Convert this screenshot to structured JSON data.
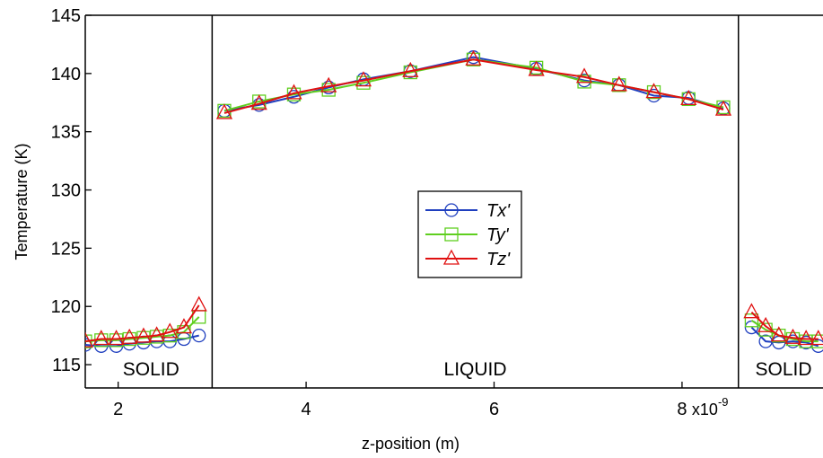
{
  "chart_data": {
    "type": "line",
    "title": "",
    "xlabel": "z-position (m)",
    "ylabel": "Temperature (K)",
    "xlim": [
      1.65e-09,
      9.5e-09
    ],
    "ylim": [
      113,
      145
    ],
    "x_scale_note": "x10^-9",
    "x_ticks": [
      2e-09,
      4e-09,
      6e-09,
      8e-09
    ],
    "x_tick_labels": [
      "2",
      "4",
      "6",
      "8"
    ],
    "y_ticks": [
      115,
      120,
      125,
      130,
      135,
      140,
      145
    ],
    "y_tick_labels": [
      "115",
      "120",
      "125",
      "130",
      "135",
      "140",
      "145"
    ],
    "boundaries": [
      3e-09,
      8.6e-09
    ],
    "regions": [
      {
        "label": "SOLID",
        "x": 2.35e-09
      },
      {
        "label": "LIQUID",
        "x": 5.8e-09
      },
      {
        "label": "SOLID",
        "x": 9.08e-09
      }
    ],
    "legend_position": "center",
    "series": [
      {
        "name": "Tx'",
        "color": "#1f3fbf",
        "marker": "circle",
        "segments": [
          {
            "x": [
              1.65e-09,
              1.82e-09,
              1.98e-09,
              2.12e-09,
              2.27e-09,
              2.41e-09,
              2.55e-09,
              2.7e-09,
              2.86e-09
            ],
            "y": [
              116.7,
              116.6,
              116.6,
              116.8,
              116.9,
              117.0,
              117.0,
              117.2,
              117.5
            ]
          },
          {
            "x": [
              3.13e-09,
              3.5e-09,
              3.87e-09,
              4.24e-09,
              4.61e-09,
              5.11e-09,
              5.78e-09,
              6.45e-09,
              6.96e-09,
              7.33e-09,
              7.7e-09,
              8.07e-09,
              8.44e-09
            ],
            "y": [
              136.8,
              137.3,
              138.0,
              138.8,
              139.5,
              140.2,
              141.4,
              140.4,
              139.4,
              139.0,
              138.1,
              137.9,
              137.0
            ]
          },
          {
            "x": [
              8.74e-09,
              8.89e-09,
              9.03e-09,
              9.18e-09,
              9.32e-09,
              9.45e-09
            ],
            "y": [
              118.2,
              117.0,
              116.9,
              117.0,
              116.9,
              116.6
            ]
          }
        ]
      },
      {
        "name": "Ty'",
        "color": "#5fcf1f",
        "marker": "square",
        "segments": [
          {
            "x": [
              1.65e-09,
              1.82e-09,
              1.98e-09,
              2.12e-09,
              2.27e-09,
              2.41e-09,
              2.55e-09,
              2.7e-09,
              2.86e-09
            ],
            "y": [
              117.0,
              117.1,
              117.1,
              117.2,
              117.3,
              117.4,
              117.5,
              117.8,
              119.1
            ]
          },
          {
            "x": [
              3.13e-09,
              3.5e-09,
              3.87e-09,
              4.24e-09,
              4.61e-09,
              5.11e-09,
              5.78e-09,
              6.45e-09,
              6.96e-09,
              7.33e-09,
              7.7e-09,
              8.07e-09,
              8.44e-09
            ],
            "y": [
              136.8,
              137.6,
              138.2,
              138.6,
              139.2,
              140.1,
              141.2,
              140.5,
              139.3,
              139.0,
              138.4,
              137.8,
              137.1
            ]
          },
          {
            "x": [
              8.74e-09,
              8.89e-09,
              9.03e-09,
              9.18e-09,
              9.32e-09,
              9.45e-09
            ],
            "y": [
              118.8,
              118.0,
              117.5,
              117.2,
              117.0,
              117.0
            ]
          }
        ]
      },
      {
        "name": "Tz'",
        "color": "#e01010",
        "marker": "triangle",
        "segments": [
          {
            "x": [
              1.65e-09,
              1.82e-09,
              1.98e-09,
              2.12e-09,
              2.27e-09,
              2.41e-09,
              2.55e-09,
              2.7e-09,
              2.86e-09
            ],
            "y": [
              117.0,
              117.2,
              117.2,
              117.3,
              117.4,
              117.5,
              117.8,
              118.2,
              120.1
            ]
          },
          {
            "x": [
              3.13e-09,
              3.5e-09,
              3.87e-09,
              4.24e-09,
              4.61e-09,
              5.11e-09,
              5.78e-09,
              6.45e-09,
              6.96e-09,
              7.33e-09,
              7.7e-09,
              8.07e-09,
              8.44e-09
            ],
            "y": [
              136.6,
              137.4,
              138.3,
              138.9,
              139.4,
              140.2,
              141.2,
              140.3,
              139.7,
              139.0,
              138.4,
              137.8,
              136.9
            ]
          },
          {
            "x": [
              8.74e-09,
              8.89e-09,
              9.03e-09,
              9.18e-09,
              9.32e-09,
              9.45e-09
            ],
            "y": [
              119.5,
              118.3,
              117.5,
              117.3,
              117.2,
              117.2
            ]
          }
        ]
      }
    ]
  }
}
